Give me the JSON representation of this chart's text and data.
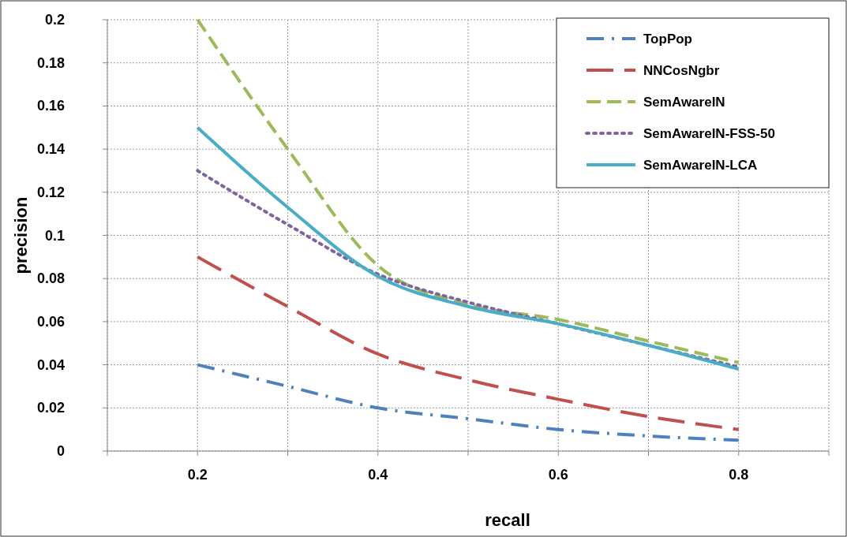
{
  "chart_data": {
    "type": "line",
    "xlabel": "recall",
    "ylabel": "precision",
    "x": [
      0.2,
      0.3,
      0.4,
      0.5,
      0.6,
      0.7,
      0.8
    ],
    "xlim": [
      0.1,
      0.9
    ],
    "xticks": [
      {
        "value": 0.1,
        "label": null
      },
      0.2,
      {
        "value": 0.3,
        "label": null
      },
      0.4,
      {
        "value": 0.5,
        "label": null
      },
      0.6,
      {
        "value": 0.7,
        "label": null
      },
      0.8,
      {
        "value": 0.9,
        "label": null
      }
    ],
    "ylim": [
      0,
      0.2
    ],
    "yticks": [
      0,
      0.02,
      0.04,
      0.06,
      0.08,
      0.1,
      0.12,
      0.14,
      0.16,
      0.18,
      0.2
    ],
    "grid": true,
    "legend": "top right",
    "marker": "none",
    "series": [
      {
        "name": "TopPop",
        "color": "#4f81bd",
        "line_style": "dashdot",
        "values": [
          0.04,
          0.03,
          0.02,
          0.015,
          0.01,
          0.007,
          0.005
        ]
      },
      {
        "name": "NNCosNgbr",
        "color": "#c0504d",
        "line_style": "longdash",
        "values": [
          0.09,
          0.067,
          0.045,
          0.033,
          0.024,
          0.016,
          0.01
        ]
      },
      {
        "name": "SemAwareIN",
        "color": "#9bbb59",
        "line_style": "dashed",
        "values": [
          0.2,
          0.14,
          0.086,
          0.068,
          0.061,
          0.051,
          0.041
        ]
      },
      {
        "name": "SemAwareIN-FSS-50",
        "color": "#8064a2",
        "line_style": "dotted",
        "values": [
          0.13,
          0.105,
          0.082,
          0.069,
          0.059,
          0.049,
          0.039
        ]
      },
      {
        "name": "SemAwareIN-LCA",
        "color": "#4bacc6",
        "line_style": "solid",
        "values": [
          0.15,
          0.113,
          0.081,
          0.067,
          0.059,
          0.049,
          0.038
        ]
      }
    ]
  }
}
